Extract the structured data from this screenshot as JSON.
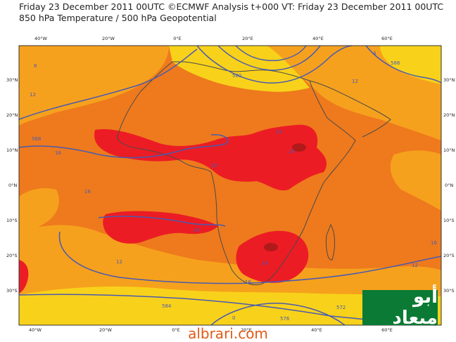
{
  "header": {
    "title": "Friday 23 December 2011 00UTC ©ECMWF Analysis t+000 VT: Friday 23 December 2011 00UTC",
    "subtitle": "850 hPa Temperature / 500 hPa Geopotential"
  },
  "map": {
    "lon_labels": [
      "40°W",
      "20°W",
      "0°E",
      "20°E",
      "40°E",
      "60°E"
    ],
    "lat_labels_left": [
      "30°N",
      "20°N",
      "10°N",
      "0°N",
      "10°S",
      "20°S",
      "30°S"
    ],
    "lat_labels_right": [
      "30°N",
      "20°N",
      "10°N",
      "0°N",
      "10°S",
      "20°S",
      "30°S"
    ],
    "contour_labels": [
      "568",
      "580",
      "584",
      "588",
      "576",
      "572"
    ],
    "temp_labels": [
      "12",
      "16",
      "20",
      "24",
      "8",
      "4",
      "0"
    ],
    "colors": {
      "deep_orange": "#ee7a1d",
      "orange": "#f6a11d",
      "yellow": "#f8d21a",
      "red": "#ec1c24",
      "dark_red": "#b01a1a",
      "geopotential": "#4a5ab0",
      "coast": "#4a4a4a"
    }
  },
  "logo": {
    "text": "أبو ميعاد"
  },
  "footer": {
    "site": "albrari.com"
  }
}
